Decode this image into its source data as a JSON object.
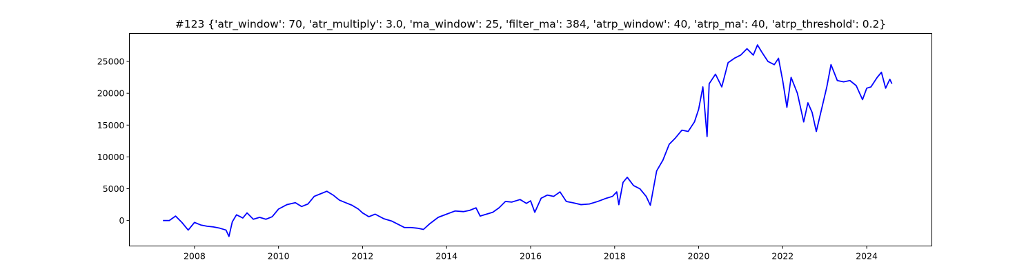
{
  "chart_data": {
    "type": "line",
    "title": "#123 {'atr_window': 70, 'atr_multiply': 3.0, 'ma_window': 25, 'filter_ma': 384, 'atrp_window': 40, 'atrp_ma': 40, 'atrp_threshold': 0.2}",
    "xlabel": "",
    "ylabel": "",
    "xlim": [
      2006.45,
      2025.55
    ],
    "ylim": [
      -4000,
      29400
    ],
    "x_ticks": [
      2008,
      2010,
      2012,
      2014,
      2016,
      2018,
      2020,
      2022,
      2024
    ],
    "x_tick_labels": [
      "2008",
      "2010",
      "2012",
      "2014",
      "2016",
      "2018",
      "2020",
      "2022",
      "2024"
    ],
    "y_ticks": [
      0,
      5000,
      10000,
      15000,
      20000,
      25000
    ],
    "y_tick_labels": [
      "0",
      "5000",
      "10000",
      "15000",
      "20000",
      "25000"
    ],
    "grid": false,
    "legend": "none",
    "series": [
      {
        "color": "#0000ff",
        "x": [
          2007.25,
          2007.4,
          2007.55,
          2007.7,
          2007.85,
          2008.0,
          2008.15,
          2008.3,
          2008.45,
          2008.6,
          2008.75,
          2008.82,
          2008.9,
          2009.0,
          2009.15,
          2009.25,
          2009.4,
          2009.55,
          2009.7,
          2009.85,
          2010.0,
          2010.2,
          2010.4,
          2010.55,
          2010.7,
          2010.85,
          2011.0,
          2011.15,
          2011.3,
          2011.45,
          2011.6,
          2011.75,
          2011.9,
          2012.0,
          2012.15,
          2012.3,
          2012.5,
          2012.7,
          2012.85,
          2013.0,
          2013.15,
          2013.3,
          2013.45,
          2013.6,
          2013.8,
          2014.0,
          2014.2,
          2014.4,
          2014.55,
          2014.7,
          2014.8,
          2014.95,
          2015.1,
          2015.25,
          2015.4,
          2015.55,
          2015.75,
          2015.9,
          2016.0,
          2016.1,
          2016.25,
          2016.4,
          2016.55,
          2016.7,
          2016.85,
          2017.0,
          2017.2,
          2017.4,
          2017.6,
          2017.8,
          2017.95,
          2018.05,
          2018.1,
          2018.2,
          2018.3,
          2018.45,
          2018.6,
          2018.75,
          2018.85,
          2018.9,
          2019.0,
          2019.15,
          2019.3,
          2019.45,
          2019.6,
          2019.75,
          2019.9,
          2020.0,
          2020.1,
          2020.2,
          2020.25,
          2020.3,
          2020.4,
          2020.55,
          2020.7,
          2020.85,
          2021.0,
          2021.15,
          2021.3,
          2021.4,
          2021.5,
          2021.65,
          2021.8,
          2021.9,
          2022.0,
          2022.1,
          2022.2,
          2022.35,
          2022.5,
          2022.6,
          2022.7,
          2022.8,
          2022.95,
          2023.05,
          2023.15,
          2023.3,
          2023.45,
          2023.6,
          2023.75,
          2023.9,
          2024.0,
          2024.1,
          2024.25,
          2024.35,
          2024.45,
          2024.55,
          2024.6
        ],
        "y": [
          0,
          0,
          700,
          -300,
          -1500,
          -300,
          -700,
          -900,
          -1000,
          -1200,
          -1500,
          -2500,
          -200,
          900,
          400,
          1200,
          200,
          500,
          200,
          600,
          1800,
          2500,
          2800,
          2200,
          2600,
          3800,
          4200,
          4600,
          4000,
          3200,
          2800,
          2400,
          1800,
          1200,
          600,
          1000,
          300,
          -100,
          -600,
          -1100,
          -1100,
          -1200,
          -1400,
          -500,
          500,
          1000,
          1500,
          1400,
          1600,
          2000,
          700,
          1000,
          1300,
          2000,
          3000,
          2900,
          3300,
          2700,
          3100,
          1300,
          3500,
          4000,
          3800,
          4500,
          3000,
          2800,
          2500,
          2600,
          3000,
          3500,
          3800,
          4500,
          2500,
          6000,
          6800,
          5500,
          5000,
          3800,
          2400,
          4200,
          7800,
          9500,
          12000,
          13000,
          14200,
          14000,
          15500,
          17500,
          21000,
          13200,
          21500,
          22000,
          23000,
          21000,
          24800,
          25500,
          26000,
          27000,
          26000,
          27600,
          26500,
          25000,
          24500,
          25500,
          22000,
          17800,
          22500,
          20000,
          15500,
          18500,
          17000,
          14000,
          18200,
          21000,
          24500,
          22000,
          21800,
          22000,
          21200,
          19000,
          20800,
          21000,
          22500,
          23300,
          20800,
          22200,
          21500
        ]
      }
    ]
  }
}
